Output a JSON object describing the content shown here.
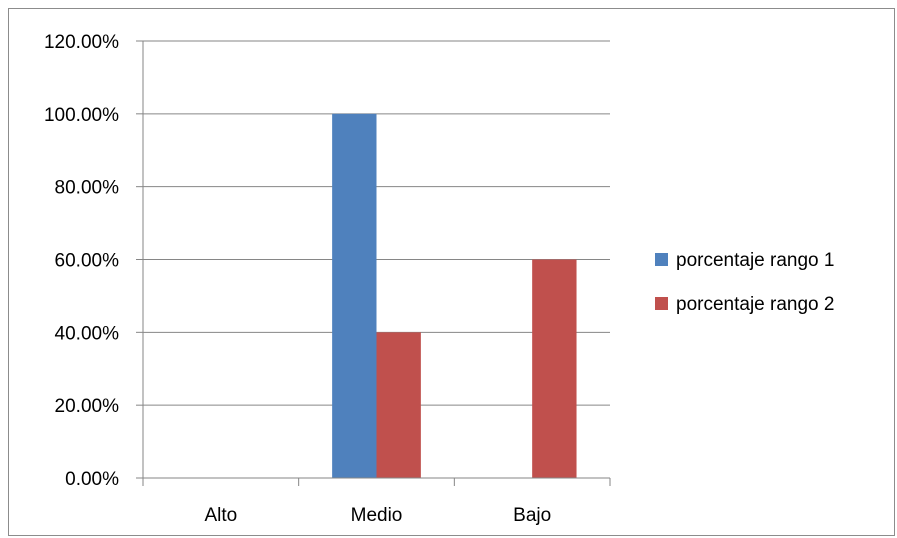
{
  "chart_data": {
    "type": "bar",
    "title": "",
    "xlabel": "",
    "ylabel": "",
    "categories": [
      "Alto",
      "Medio",
      "Bajo"
    ],
    "series": [
      {
        "name": "porcentaje rango 1",
        "values": [
          0,
          1.0,
          0
        ],
        "color": "#4f81bd"
      },
      {
        "name": "porcentaje rango 2",
        "values": [
          0,
          0.4,
          0.6
        ],
        "color": "#c0504d"
      }
    ],
    "ylim": [
      0,
      1.2
    ],
    "y_ticks": [
      0,
      0.2,
      0.4,
      0.6,
      0.8,
      1.0,
      1.2
    ],
    "y_tick_labels": [
      "0.00%",
      "20.00%",
      "40.00%",
      "60.00%",
      "80.00%",
      "100.00%",
      "120.00%"
    ],
    "grid": true,
    "legend_position": "right"
  }
}
